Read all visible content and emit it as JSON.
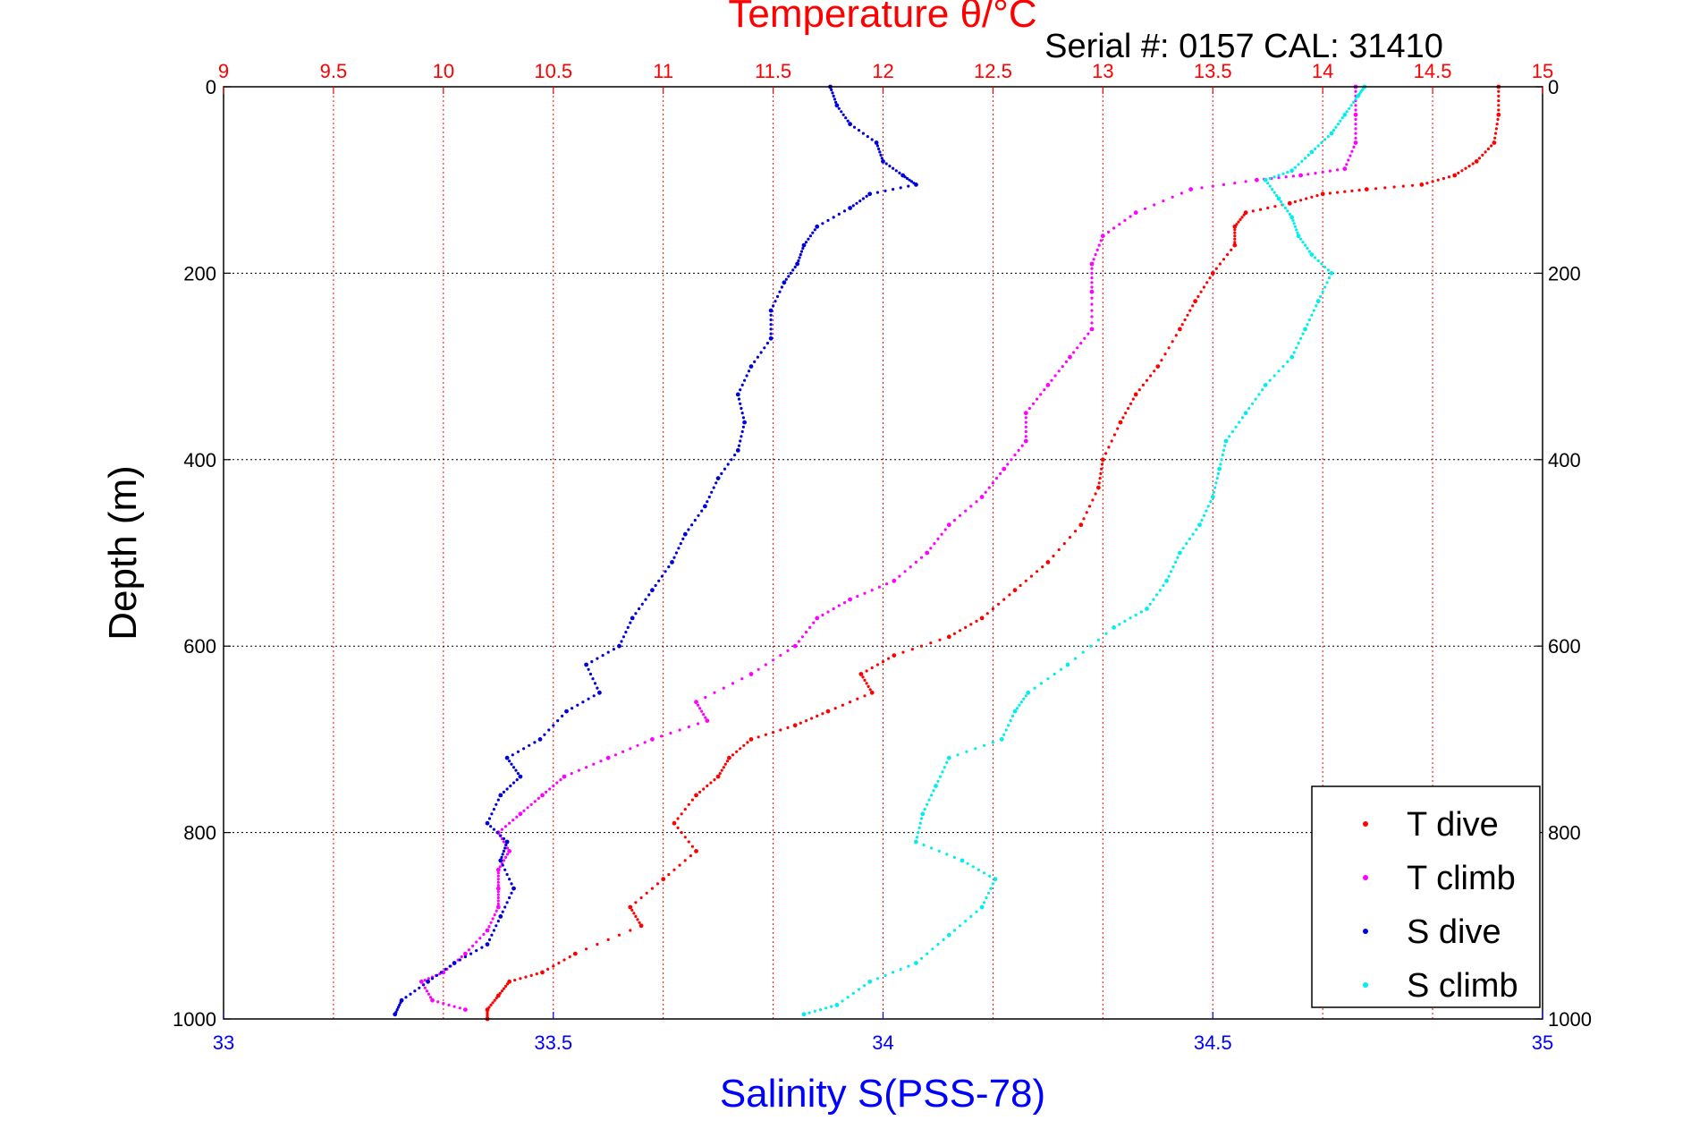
{
  "chart_data": {
    "type": "scatter",
    "title_top": "Temperature θ/°C",
    "serial_label": "Serial #: 0157  CAL: 31410",
    "xlabel_bottom": "Salinity S(PSS-78)",
    "ylabel": "Depth (m)",
    "top_axis": {
      "range": [
        9,
        15
      ],
      "ticks": [
        "9",
        "9.5",
        "10",
        "10.5",
        "11",
        "11.5",
        "12",
        "12.5",
        "13",
        "13.5",
        "14",
        "14.5",
        "15"
      ],
      "color": "#ff0000"
    },
    "bottom_axis": {
      "range": [
        33,
        35
      ],
      "ticks": [
        "33",
        "33.5",
        "34",
        "34.5",
        "35"
      ],
      "color": "#0000ff"
    },
    "y_axis": {
      "range": [
        0,
        1000
      ],
      "reversed": true,
      "ticks": [
        "0",
        "200",
        "400",
        "600",
        "800",
        "1000"
      ]
    },
    "grid": true,
    "legend_position": "bottom-right",
    "series": [
      {
        "name": "T dive",
        "axis": "temperature",
        "color": "#ff0000",
        "points": [
          [
            14.8,
            0
          ],
          [
            14.8,
            30
          ],
          [
            14.78,
            60
          ],
          [
            14.7,
            80
          ],
          [
            14.6,
            95
          ],
          [
            14.45,
            105
          ],
          [
            14.2,
            110
          ],
          [
            14.0,
            115
          ],
          [
            13.85,
            125
          ],
          [
            13.65,
            135
          ],
          [
            13.6,
            150
          ],
          [
            13.6,
            170
          ],
          [
            13.5,
            200
          ],
          [
            13.42,
            230
          ],
          [
            13.35,
            260
          ],
          [
            13.25,
            300
          ],
          [
            13.15,
            330
          ],
          [
            13.08,
            360
          ],
          [
            13.0,
            400
          ],
          [
            12.98,
            430
          ],
          [
            12.9,
            470
          ],
          [
            12.75,
            510
          ],
          [
            12.6,
            540
          ],
          [
            12.45,
            570
          ],
          [
            12.3,
            590
          ],
          [
            12.05,
            610
          ],
          [
            11.9,
            630
          ],
          [
            11.95,
            650
          ],
          [
            11.75,
            670
          ],
          [
            11.6,
            685
          ],
          [
            11.4,
            700
          ],
          [
            11.3,
            720
          ],
          [
            11.25,
            740
          ],
          [
            11.15,
            760
          ],
          [
            11.05,
            790
          ],
          [
            11.15,
            820
          ],
          [
            11.0,
            850
          ],
          [
            10.85,
            880
          ],
          [
            10.9,
            900
          ],
          [
            10.6,
            930
          ],
          [
            10.45,
            950
          ],
          [
            10.3,
            960
          ],
          [
            10.25,
            975
          ],
          [
            10.2,
            990
          ],
          [
            10.2,
            1000
          ]
        ]
      },
      {
        "name": "T climb",
        "axis": "temperature",
        "color": "#ff00ff",
        "points": [
          [
            10.1,
            990
          ],
          [
            9.95,
            980
          ],
          [
            9.9,
            960
          ],
          [
            10.0,
            950
          ],
          [
            10.1,
            930
          ],
          [
            10.2,
            905
          ],
          [
            10.25,
            880
          ],
          [
            10.25,
            860
          ],
          [
            10.25,
            840
          ],
          [
            10.3,
            820
          ],
          [
            10.25,
            800
          ],
          [
            10.35,
            780
          ],
          [
            10.45,
            760
          ],
          [
            10.55,
            740
          ],
          [
            10.75,
            720
          ],
          [
            10.95,
            700
          ],
          [
            11.2,
            680
          ],
          [
            11.15,
            660
          ],
          [
            11.4,
            630
          ],
          [
            11.6,
            600
          ],
          [
            11.7,
            570
          ],
          [
            11.85,
            550
          ],
          [
            12.05,
            530
          ],
          [
            12.2,
            500
          ],
          [
            12.3,
            470
          ],
          [
            12.45,
            440
          ],
          [
            12.55,
            410
          ],
          [
            12.65,
            380
          ],
          [
            12.65,
            350
          ],
          [
            12.75,
            320
          ],
          [
            12.85,
            290
          ],
          [
            12.95,
            260
          ],
          [
            12.95,
            220
          ],
          [
            12.95,
            190
          ],
          [
            13.0,
            160
          ],
          [
            13.15,
            135
          ],
          [
            13.4,
            110
          ],
          [
            13.7,
            100
          ],
          [
            13.9,
            95
          ],
          [
            14.1,
            88
          ],
          [
            14.15,
            60
          ],
          [
            14.15,
            30
          ],
          [
            14.15,
            0
          ]
        ]
      },
      {
        "name": "S dive",
        "axis": "salinity",
        "color": "#0000dd",
        "points": [
          [
            33.92,
            0
          ],
          [
            33.93,
            20
          ],
          [
            33.95,
            40
          ],
          [
            33.99,
            60
          ],
          [
            34.0,
            80
          ],
          [
            34.03,
            95
          ],
          [
            34.05,
            105
          ],
          [
            33.98,
            115
          ],
          [
            33.95,
            130
          ],
          [
            33.9,
            150
          ],
          [
            33.88,
            170
          ],
          [
            33.87,
            190
          ],
          [
            33.85,
            210
          ],
          [
            33.83,
            240
          ],
          [
            33.83,
            270
          ],
          [
            33.8,
            300
          ],
          [
            33.78,
            330
          ],
          [
            33.79,
            360
          ],
          [
            33.78,
            390
          ],
          [
            33.75,
            420
          ],
          [
            33.73,
            450
          ],
          [
            33.7,
            480
          ],
          [
            33.68,
            510
          ],
          [
            33.65,
            540
          ],
          [
            33.62,
            570
          ],
          [
            33.6,
            600
          ],
          [
            33.55,
            620
          ],
          [
            33.57,
            650
          ],
          [
            33.52,
            670
          ],
          [
            33.48,
            700
          ],
          [
            33.43,
            720
          ],
          [
            33.45,
            740
          ],
          [
            33.42,
            760
          ],
          [
            33.4,
            790
          ],
          [
            33.43,
            810
          ],
          [
            33.42,
            830
          ],
          [
            33.44,
            860
          ],
          [
            33.42,
            890
          ],
          [
            33.4,
            920
          ],
          [
            33.35,
            940
          ],
          [
            33.31,
            960
          ],
          [
            33.27,
            980
          ],
          [
            33.26,
            995
          ]
        ]
      },
      {
        "name": "S climb",
        "axis": "salinity",
        "color": "#00eeee",
        "points": [
          [
            33.88,
            995
          ],
          [
            33.93,
            985
          ],
          [
            33.98,
            960
          ],
          [
            34.05,
            940
          ],
          [
            34.1,
            910
          ],
          [
            34.15,
            880
          ],
          [
            34.17,
            850
          ],
          [
            34.12,
            830
          ],
          [
            34.05,
            810
          ],
          [
            34.06,
            780
          ],
          [
            34.08,
            750
          ],
          [
            34.1,
            720
          ],
          [
            34.18,
            700
          ],
          [
            34.2,
            670
          ],
          [
            34.22,
            650
          ],
          [
            34.28,
            620
          ],
          [
            34.35,
            580
          ],
          [
            34.4,
            560
          ],
          [
            34.43,
            530
          ],
          [
            34.45,
            500
          ],
          [
            34.48,
            470
          ],
          [
            34.5,
            440
          ],
          [
            34.51,
            410
          ],
          [
            34.52,
            380
          ],
          [
            34.55,
            350
          ],
          [
            34.58,
            320
          ],
          [
            34.62,
            290
          ],
          [
            34.64,
            260
          ],
          [
            34.66,
            230
          ],
          [
            34.68,
            200
          ],
          [
            34.65,
            180
          ],
          [
            34.63,
            160
          ],
          [
            34.62,
            140
          ],
          [
            34.6,
            120
          ],
          [
            34.58,
            100
          ],
          [
            34.62,
            90
          ],
          [
            34.65,
            70
          ],
          [
            34.68,
            50
          ],
          [
            34.7,
            30
          ],
          [
            34.72,
            10
          ],
          [
            34.73,
            0
          ]
        ]
      }
    ]
  }
}
